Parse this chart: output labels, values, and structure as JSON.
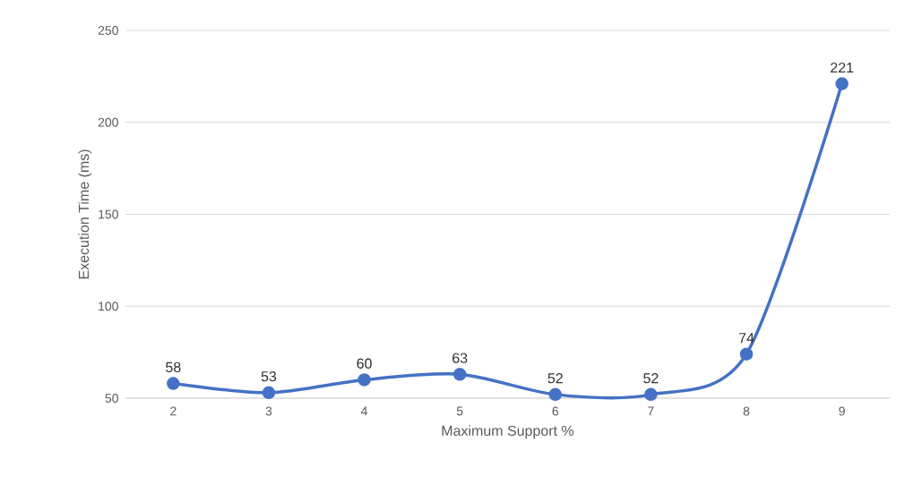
{
  "chart_data": {
    "type": "line",
    "xlabel": "Maximum Support %",
    "ylabel": "Execution Time (ms)",
    "categories": [
      "2",
      "3",
      "4",
      "5",
      "6",
      "7",
      "8",
      "9"
    ],
    "values": [
      58,
      53,
      60,
      63,
      52,
      52,
      74,
      221
    ],
    "color": "#4472c4",
    "ylim": [
      50,
      250
    ],
    "yticks": [
      50,
      100,
      150,
      200,
      250
    ],
    "grid": "y",
    "marker": "circle",
    "line_style": "solid",
    "data_labels": true
  }
}
